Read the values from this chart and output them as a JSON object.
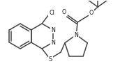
{
  "figsize": [
    1.7,
    1.03
  ],
  "dpi": 100,
  "line_color": "#444444",
  "line_width": 1.1,
  "text_color": "#111111",
  "font_size": 5.8,
  "bg_color": "#ffffff",
  "xlim": [
    0,
    170
  ],
  "ylim": [
    0,
    103
  ]
}
